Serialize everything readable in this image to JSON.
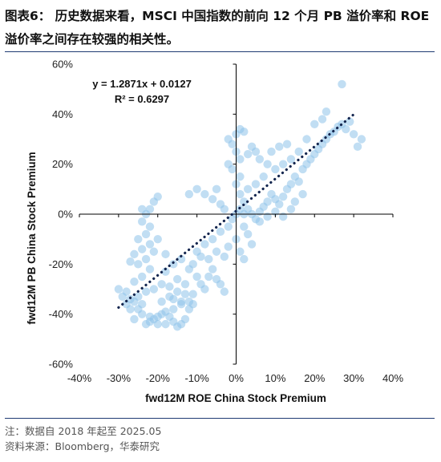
{
  "figure": {
    "title": "图表6： 历史数据来看，MSCI 中国指数的前向 12 个月 PB 溢价率和 ROE 溢价率之间存在较强的相关性。",
    "note": "注：数据自 2018 年起至 2025.05",
    "source": "资料来源：Bloomberg，华泰研究"
  },
  "chart_data": {
    "type": "scatter",
    "title": "",
    "xlabel": "fwd12M ROE China Stock Premium",
    "ylabel": "fwd12M PB China Stock Premium",
    "xlim": [
      -0.4,
      0.4
    ],
    "ylim": [
      -0.6,
      0.6
    ],
    "x_ticks": [
      -0.4,
      -0.3,
      -0.2,
      -0.1,
      0.0,
      0.1,
      0.2,
      0.3,
      0.4
    ],
    "x_tick_labels": [
      "-40%",
      "-30%",
      "-20%",
      "-10%",
      "0%",
      "10%",
      "20%",
      "30%",
      "40%"
    ],
    "y_ticks": [
      -0.6,
      -0.4,
      -0.2,
      0.0,
      0.2,
      0.4,
      0.6
    ],
    "y_tick_labels": [
      "-60%",
      "-40%",
      "-20%",
      "0%",
      "20%",
      "40%",
      "60%"
    ],
    "grid": false,
    "point_color": "#8ec3ea",
    "trendline_color": "#14264f",
    "trendline": {
      "slope": 1.2871,
      "intercept": 0.0127,
      "x_range": [
        -0.3,
        0.3
      ],
      "style": "dotted",
      "equation_text": "y = 1.2871x + 0.0127",
      "r2_text": "R² = 0.6297"
    },
    "series": [
      {
        "points": [
          [
            -0.3,
            -0.3
          ],
          [
            -0.29,
            -0.33
          ],
          [
            -0.28,
            -0.36
          ],
          [
            -0.27,
            -0.34
          ],
          [
            -0.26,
            -0.35
          ],
          [
            -0.27,
            -0.38
          ],
          [
            -0.25,
            -0.38
          ],
          [
            -0.24,
            -0.4
          ],
          [
            -0.23,
            -0.44
          ],
          [
            -0.22,
            -0.43
          ],
          [
            -0.21,
            -0.42
          ],
          [
            -0.2,
            -0.41
          ],
          [
            -0.19,
            -0.4
          ],
          [
            -0.18,
            -0.39
          ],
          [
            -0.17,
            -0.41
          ],
          [
            -0.16,
            -0.43
          ],
          [
            -0.15,
            -0.45
          ],
          [
            -0.14,
            -0.44
          ],
          [
            -0.13,
            -0.42
          ],
          [
            -0.12,
            -0.38
          ],
          [
            -0.11,
            -0.36
          ],
          [
            -0.14,
            -0.36
          ],
          [
            -0.16,
            -0.38
          ],
          [
            -0.18,
            -0.44
          ],
          [
            -0.2,
            -0.44
          ],
          [
            -0.22,
            -0.41
          ],
          [
            -0.24,
            -0.36
          ],
          [
            -0.25,
            -0.33
          ],
          [
            -0.23,
            -0.31
          ],
          [
            -0.21,
            -0.3
          ],
          [
            -0.19,
            -0.28
          ],
          [
            -0.17,
            -0.29
          ],
          [
            -0.15,
            -0.31
          ],
          [
            -0.13,
            -0.32
          ],
          [
            -0.12,
            -0.35
          ],
          [
            -0.26,
            -0.27
          ],
          [
            -0.24,
            -0.25
          ],
          [
            -0.22,
            -0.22
          ],
          [
            -0.25,
            -0.2
          ],
          [
            -0.27,
            -0.19
          ],
          [
            -0.23,
            -0.18
          ],
          [
            -0.21,
            -0.15
          ],
          [
            -0.24,
            -0.14
          ],
          [
            -0.26,
            -0.16
          ],
          [
            -0.22,
            -0.12
          ],
          [
            -0.2,
            -0.1
          ],
          [
            -0.25,
            -0.1
          ],
          [
            -0.23,
            -0.08
          ],
          [
            -0.22,
            -0.05
          ],
          [
            -0.24,
            -0.03
          ],
          [
            -0.23,
            0.0
          ],
          [
            -0.22,
            0.02
          ],
          [
            -0.21,
            0.05
          ],
          [
            -0.2,
            0.07
          ],
          [
            -0.24,
            0.02
          ],
          [
            -0.18,
            -0.23
          ],
          [
            -0.16,
            -0.2
          ],
          [
            -0.14,
            -0.18
          ],
          [
            -0.12,
            -0.22
          ],
          [
            -0.1,
            -0.25
          ],
          [
            -0.09,
            -0.28
          ],
          [
            -0.08,
            -0.3
          ],
          [
            -0.07,
            -0.25
          ],
          [
            -0.06,
            -0.22
          ],
          [
            -0.05,
            -0.26
          ],
          [
            -0.04,
            -0.28
          ],
          [
            -0.03,
            -0.31
          ],
          [
            -0.1,
            -0.15
          ],
          [
            -0.08,
            -0.12
          ],
          [
            -0.06,
            -0.1
          ],
          [
            -0.04,
            -0.07
          ],
          [
            -0.02,
            -0.05
          ],
          [
            -0.01,
            -0.02
          ],
          [
            0.0,
            0.0
          ],
          [
            -0.02,
            -0.13
          ],
          [
            -0.03,
            -0.17
          ],
          [
            -0.07,
            -0.18
          ],
          [
            -0.12,
            0.08
          ],
          [
            -0.1,
            0.1
          ],
          [
            -0.08,
            0.08
          ],
          [
            -0.06,
            0.06
          ],
          [
            -0.05,
            0.1
          ],
          [
            -0.14,
            -0.35
          ],
          [
            -0.11,
            -0.32
          ],
          [
            -0.17,
            -0.33
          ],
          [
            -0.01,
            0.28
          ],
          [
            -0.02,
            0.3
          ],
          [
            0.0,
            0.32
          ],
          [
            0.01,
            0.34
          ],
          [
            0.02,
            0.33
          ],
          [
            0.0,
            0.25
          ],
          [
            0.01,
            0.22
          ],
          [
            -0.01,
            0.18
          ],
          [
            0.0,
            0.12
          ],
          [
            0.01,
            0.08
          ],
          [
            0.02,
            0.05
          ],
          [
            0.03,
            0.02
          ],
          [
            0.04,
            0.0
          ],
          [
            0.05,
            -0.02
          ],
          [
            0.06,
            0.01
          ],
          [
            0.07,
            0.03
          ],
          [
            0.08,
            0.05
          ],
          [
            0.09,
            0.08
          ],
          [
            0.1,
            0.06
          ],
          [
            0.11,
            0.04
          ],
          [
            0.12,
            0.07
          ],
          [
            0.13,
            0.1
          ],
          [
            0.14,
            0.12
          ],
          [
            0.15,
            0.15
          ],
          [
            0.16,
            0.13
          ],
          [
            0.17,
            0.18
          ],
          [
            0.18,
            0.2
          ],
          [
            0.19,
            0.22
          ],
          [
            0.2,
            0.24
          ],
          [
            0.21,
            0.26
          ],
          [
            0.22,
            0.28
          ],
          [
            0.23,
            0.3
          ],
          [
            0.24,
            0.32
          ],
          [
            0.25,
            0.33
          ],
          [
            0.26,
            0.35
          ],
          [
            0.27,
            0.36
          ],
          [
            0.28,
            0.34
          ],
          [
            0.29,
            0.37
          ],
          [
            0.3,
            0.32
          ],
          [
            0.31,
            0.27
          ],
          [
            0.32,
            0.3
          ],
          [
            0.27,
            0.52
          ],
          [
            0.22,
            0.38
          ],
          [
            0.2,
            0.36
          ],
          [
            0.23,
            0.41
          ],
          [
            0.18,
            0.3
          ],
          [
            0.16,
            0.25
          ],
          [
            0.14,
            0.22
          ],
          [
            0.12,
            0.2
          ],
          [
            0.1,
            0.18
          ],
          [
            0.08,
            0.2
          ],
          [
            0.06,
            0.22
          ],
          [
            0.05,
            0.25
          ],
          [
            0.04,
            0.27
          ],
          [
            0.03,
            0.24
          ],
          [
            0.09,
            0.25
          ],
          [
            0.11,
            0.27
          ],
          [
            0.13,
            0.28
          ],
          [
            0.07,
            0.15
          ],
          [
            0.05,
            0.12
          ],
          [
            0.03,
            0.1
          ],
          [
            0.02,
            -0.05
          ],
          [
            0.03,
            -0.08
          ],
          [
            0.04,
            -0.12
          ],
          [
            0.01,
            -0.15
          ],
          [
            0.02,
            -0.18
          ],
          [
            0.0,
            -0.1
          ],
          [
            0.06,
            -0.03
          ],
          [
            0.08,
            -0.01
          ],
          [
            0.1,
            0.01
          ],
          [
            -0.03,
            0.02
          ],
          [
            -0.04,
            0.04
          ],
          [
            0.01,
            0.02
          ],
          [
            0.02,
            0.0
          ],
          [
            0.01,
            0.15
          ],
          [
            -0.02,
            0.2
          ],
          [
            0.15,
            0.05
          ],
          [
            0.17,
            0.08
          ],
          [
            0.12,
            -0.01
          ],
          [
            0.14,
            0.02
          ],
          [
            -0.28,
            -0.31
          ],
          [
            -0.19,
            -0.35
          ],
          [
            -0.15,
            -0.26
          ],
          [
            -0.26,
            -0.42
          ],
          [
            -0.18,
            -0.16
          ],
          [
            -0.11,
            -0.2
          ],
          [
            -0.09,
            -0.17
          ],
          [
            -0.05,
            -0.15
          ],
          [
            -0.13,
            -0.28
          ],
          [
            -0.16,
            -0.34
          ]
        ]
      }
    ]
  }
}
